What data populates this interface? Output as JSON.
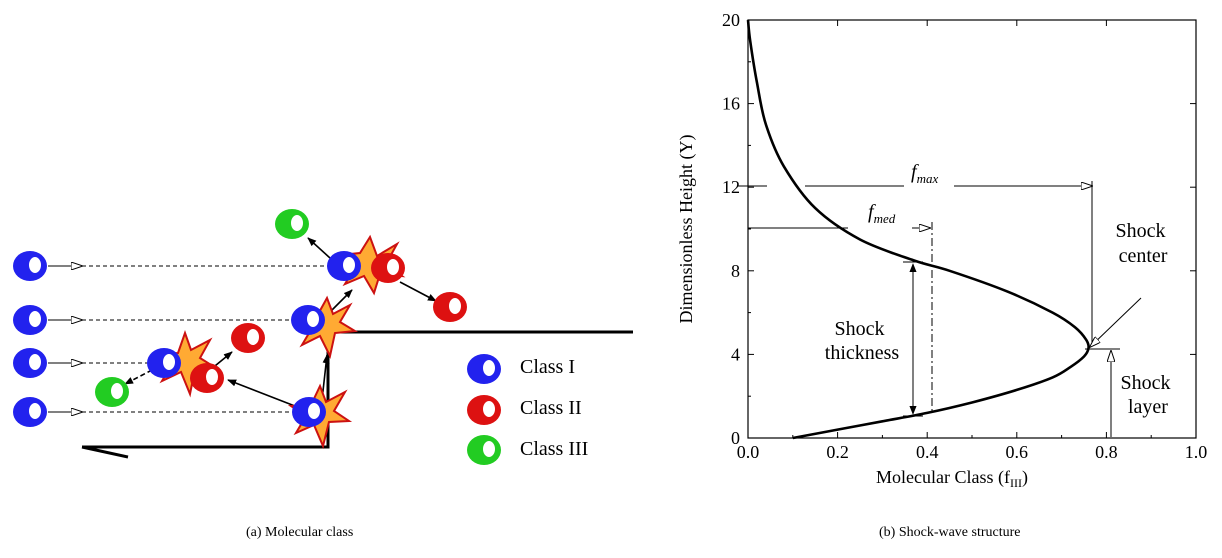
{
  "panel_a": {
    "caption": "(a) Molecular class",
    "legend": [
      {
        "label": "Class I",
        "color": "#2222ee"
      },
      {
        "label": "Class II",
        "color": "#dd1111"
      },
      {
        "label": "Class III",
        "color": "#22cc22"
      }
    ]
  },
  "panel_b": {
    "caption": "(b) Shock-wave structure",
    "xlabel_text": "Molecular Class (f",
    "xlabel_sub": "III",
    "xlabel_close": ")",
    "ylabel": "Dimensionless Height (Y)",
    "f_max_text": "f",
    "f_max_sub": "max",
    "f_med_text": "f",
    "f_med_sub": "med",
    "shock_center_1": "Shock",
    "shock_center_2": "center",
    "shock_thickness_1": "Shock",
    "shock_thickness_2": "thickness",
    "shock_layer_1": "Shock",
    "shock_layer_2": "layer"
  },
  "chart_data": {
    "type": "line",
    "title": "",
    "xlabel": "Molecular Class (fIII)",
    "ylabel": "Dimensionless Height (Y)",
    "xlim": [
      0.0,
      1.0
    ],
    "ylim": [
      0,
      20
    ],
    "xticks": [
      "0.0",
      "0.2",
      "0.4",
      "0.6",
      "0.8",
      "1.0"
    ],
    "yticks": [
      "0",
      "4",
      "8",
      "12",
      "16",
      "20"
    ],
    "grid": false,
    "series": [
      {
        "x": [
          0.1,
          0.2,
          0.3,
          0.4,
          0.5,
          0.6,
          0.68,
          0.72,
          0.75,
          0.76,
          0.755,
          0.73,
          0.68,
          0.58,
          0.45,
          0.37,
          0.25,
          0.15,
          0.08,
          0.04,
          0.02,
          0.005,
          0.0
        ],
        "y": [
          0.0,
          0.4,
          0.8,
          1.2,
          1.7,
          2.3,
          2.9,
          3.4,
          3.9,
          4.3,
          4.7,
          5.3,
          6.0,
          7.0,
          8.0,
          8.5,
          9.5,
          11.0,
          13.0,
          15.0,
          17.0,
          19.0,
          20.0
        ]
      }
    ],
    "annotations": [
      {
        "text": "f_max",
        "x": 0.76,
        "y": 12
      },
      {
        "text": "f_med",
        "x": 0.4,
        "y": 10
      },
      {
        "text": "Shock center",
        "x": 0.76,
        "y": 4.3
      },
      {
        "text": "Shock thickness",
        "x": 0.37,
        "y": 4.7
      },
      {
        "text": "Shock layer",
        "x": 0.8,
        "y": 2.1
      }
    ]
  }
}
